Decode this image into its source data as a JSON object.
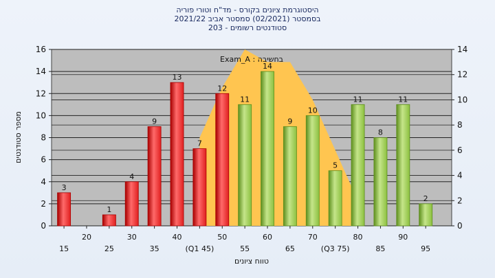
{
  "title_lines": [
    "היסטוגרמת ציונים בקורס - מד\"ח וטורי פוריה",
    "בסמסטר  (02/2021)  סמסטר אביב 2021/22",
    "סטודנטים רשומים - 203"
  ],
  "chart_data": {
    "type": "bar",
    "xlabel": "טווח ציונים",
    "ylabel": "מספר סטודנטים",
    "ylim": [
      0,
      16
    ],
    "y_ticks": [
      0,
      2,
      4,
      6,
      8,
      10,
      12,
      14,
      16
    ],
    "y2lim": [
      0,
      14
    ],
    "y2_ticks": [
      0,
      2,
      4,
      6,
      8,
      10,
      12,
      14
    ],
    "x_tick_labels": [
      "15",
      "20",
      "25",
      "30",
      "35",
      "40",
      "(Q1 45)",
      "50",
      "55",
      "60",
      "65",
      "70",
      "(Q3 75)",
      "80",
      "85",
      "90",
      "95"
    ],
    "categories": [
      "15",
      "20",
      "25",
      "30",
      "35",
      "40",
      "45",
      "50",
      "55",
      "60",
      "65",
      "70",
      "75",
      "80",
      "85",
      "90",
      "95"
    ],
    "values": [
      3,
      0,
      1,
      4,
      9,
      13,
      7,
      12,
      11,
      14,
      9,
      10,
      5,
      11,
      8,
      11,
      2
    ],
    "bar_colors": [
      "red",
      "red",
      "red",
      "red",
      "red",
      "red",
      "red",
      "red",
      "green",
      "green",
      "green",
      "green",
      "green",
      "green",
      "green",
      "green",
      "green"
    ],
    "colors": {
      "red": "#e02020",
      "green": "#8cc040",
      "area": "#ffc550",
      "plot_bg": "#bdbdbd"
    },
    "annotation": "Exam_A : בחשיבה",
    "area_series": {
      "x": [
        "45",
        "50",
        "55",
        "60",
        "65",
        "70",
        "75",
        "80"
      ],
      "values": [
        7,
        11,
        14,
        13,
        13,
        10,
        6,
        2
      ]
    },
    "grid": true
  }
}
